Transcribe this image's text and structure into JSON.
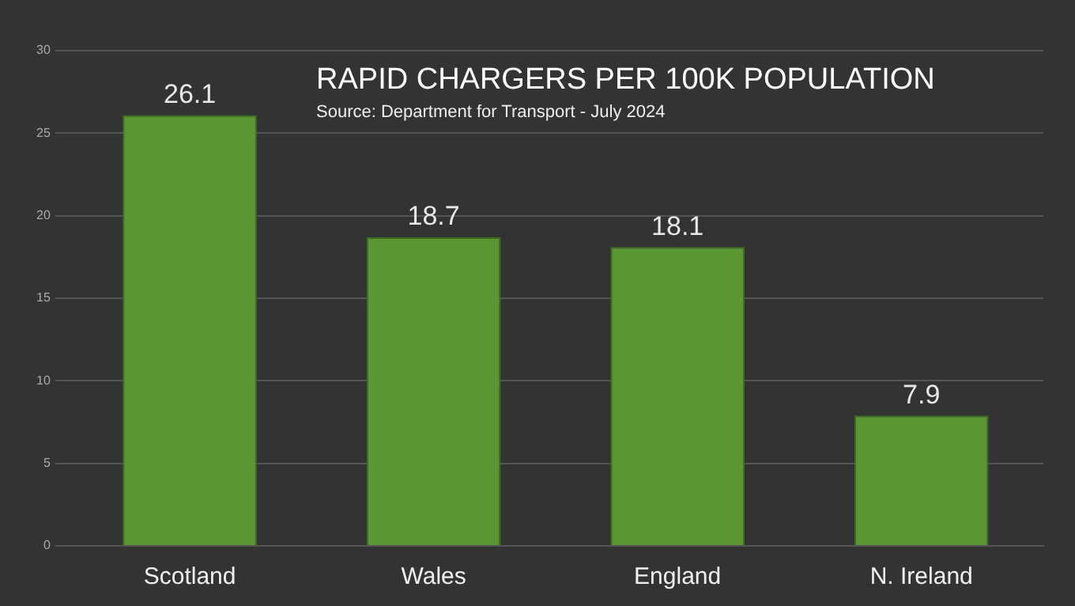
{
  "chart_data": {
    "type": "bar",
    "title": "RAPID CHARGERS PER 100K POPULATION",
    "annotations": [
      "Source: Department for Transport - July 2024"
    ],
    "categories": [
      "Scotland",
      "Wales",
      "England",
      "N. Ireland"
    ],
    "values": [
      26.1,
      18.7,
      18.1,
      7.9
    ],
    "color": "#5a9632",
    "data_labels": true,
    "ylim": [
      0,
      30
    ],
    "yticks": [
      0,
      5,
      10,
      15,
      20,
      25,
      30
    ],
    "grid": "y",
    "legend": false
  }
}
